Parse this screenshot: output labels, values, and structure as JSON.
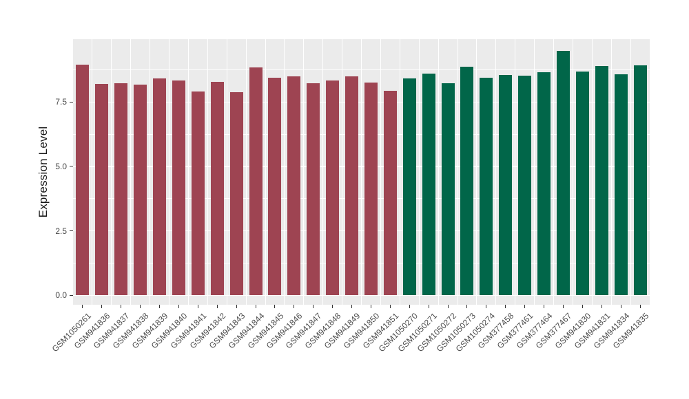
{
  "chart_data": {
    "type": "bar",
    "title": "",
    "xlabel": "",
    "ylabel": "Expression Level",
    "ylim": [
      0,
      9.93
    ],
    "ytick_values": [
      0,
      2.5,
      5,
      7.5
    ],
    "ytick_labels": [
      "0.0",
      "2.5",
      "5.0",
      "7.5"
    ],
    "grid": true,
    "legend": "none",
    "categories": [
      "GSM1050261",
      "GSM941836",
      "GSM941837",
      "GSM941838",
      "GSM941839",
      "GSM941840",
      "GSM941841",
      "GSM941842",
      "GSM941843",
      "GSM941844",
      "GSM941845",
      "GSM941846",
      "GSM941847",
      "GSM941848",
      "GSM941849",
      "GSM941850",
      "GSM941851",
      "GSM1050270",
      "GSM1050271",
      "GSM1050272",
      "GSM1050273",
      "GSM1050274",
      "GSM377458",
      "GSM377461",
      "GSM377464",
      "GSM377467",
      "GSM941830",
      "GSM941831",
      "GSM941834",
      "GSM941835"
    ],
    "values": [
      8.96,
      8.2,
      8.24,
      8.18,
      8.42,
      8.34,
      7.91,
      8.28,
      7.89,
      8.85,
      8.43,
      8.5,
      8.22,
      8.34,
      8.5,
      8.26,
      7.93,
      8.41,
      8.59,
      8.22,
      8.86,
      8.45,
      8.55,
      8.51,
      8.66,
      9.47,
      8.69,
      8.9,
      8.57,
      8.93
    ],
    "bar_groups": [
      "group1",
      "group1",
      "group1",
      "group1",
      "group1",
      "group1",
      "group1",
      "group1",
      "group1",
      "group1",
      "group1",
      "group1",
      "group1",
      "group1",
      "group1",
      "group1",
      "group1",
      "group2",
      "group2",
      "group2",
      "group2",
      "group2",
      "group2",
      "group2",
      "group2",
      "group2",
      "group2",
      "group2",
      "group2",
      "group2"
    ],
    "group_colors": {
      "group1": "#9E4452",
      "group2": "#016649"
    },
    "styles": {
      "panel_bg": "#EBEBEB",
      "grid_color": "#FFFFFF",
      "tick_mark_color": "#333333",
      "axis_text_color": "#4A4A4A",
      "axis_title_color": "#1A1A1A",
      "background": "#FFFFFF"
    }
  }
}
